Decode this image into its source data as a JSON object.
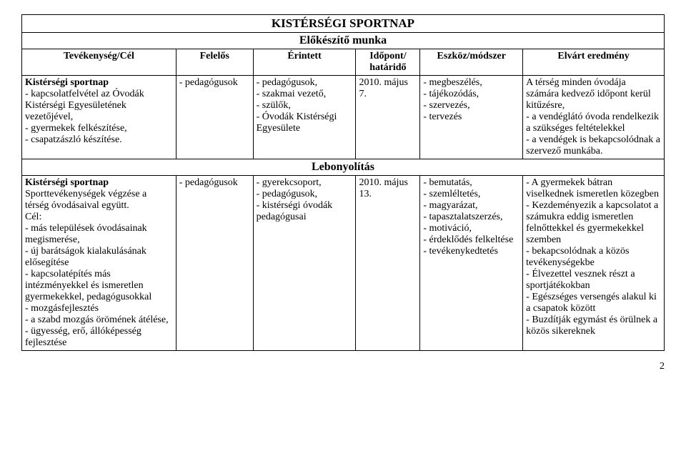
{
  "title": "KISTÉRSÉGI SPORTNAP",
  "subtitle": "Előkészítő munka",
  "headers": {
    "c1": "Tevékenység/Cél",
    "c2": "Felelős",
    "c3": "Érintett",
    "c4": "Időpont/ határidő",
    "c5": "Eszköz/módszer",
    "c6": "Elvárt eredmény"
  },
  "row1": {
    "c1_bold": "Kistérségi sportnap",
    "c1_rest": "\n- kapcsolatfelvétel az Óvodák Kistérségi Egyesületének vezetőjével,\n- gyermekek felkészítése,\n- csapatzászló készítése.",
    "c2": "- pedagógusok",
    "c3": "- pedagógusok,\n- szakmai vezető,\n- szülők,\n- Óvodák Kistérségi Egyesülete",
    "c4": "2010. május 7.",
    "c5": "- megbeszélés,\n- tájékozódás,\n- szervezés,\n- tervezés",
    "c6": "A térség minden óvodája számára kedvező időpont kerül kitűzésre,\n- a vendéglátó óvoda rendelkezik a szükséges feltételekkel\n- a vendégek is bekapcsolódnak a szervező munkába."
  },
  "section2": "Lebonyolítás",
  "row2": {
    "c1_bold": "Kistérségi sportnap",
    "c1_rest": "\nSporttevékenységek végzése a térség óvodásaival együtt.\nCél:\n- más települések óvodásainak megismerése,\n- új barátságok kialakulásának elősegítése\n- kapcsolatépítés más intézményekkel és ismeretlen gyermekekkel, pedagógusokkal\n- mozgásfejlesztés\n- a szabd mozgás örömének átélése,\n- ügyesség, erő, állóképesség fejlesztése",
    "c2": "- pedagógusok",
    "c3": "- gyerekcsoport,\n- pedagógusok,\n- kistérségi óvodák pedagógusai",
    "c4": "2010. május 13.",
    "c5": "- bemutatás,\n- szemléltetés,\n- magyarázat,\n- tapasztalatszerzés,\n- motiváció,\n- érdeklődés felkeltése\n- tevékenykedtetés",
    "c6": "- A gyermekek bátran viselkednek ismeretlen közegben\n- Kezdeményezik a kapcsolatot a számukra eddig ismeretlen felnőttekkel és gyermekekkel szemben\n- bekapcsolódnak a közös tevékenységekbe\n- Élvezettel vesznek részt a sportjátékokban\n- Egészséges versengés alakul ki a csapatok között\n- Buzdítják egymást és örülnek a közös sikereknek"
  },
  "pagenum": "2"
}
